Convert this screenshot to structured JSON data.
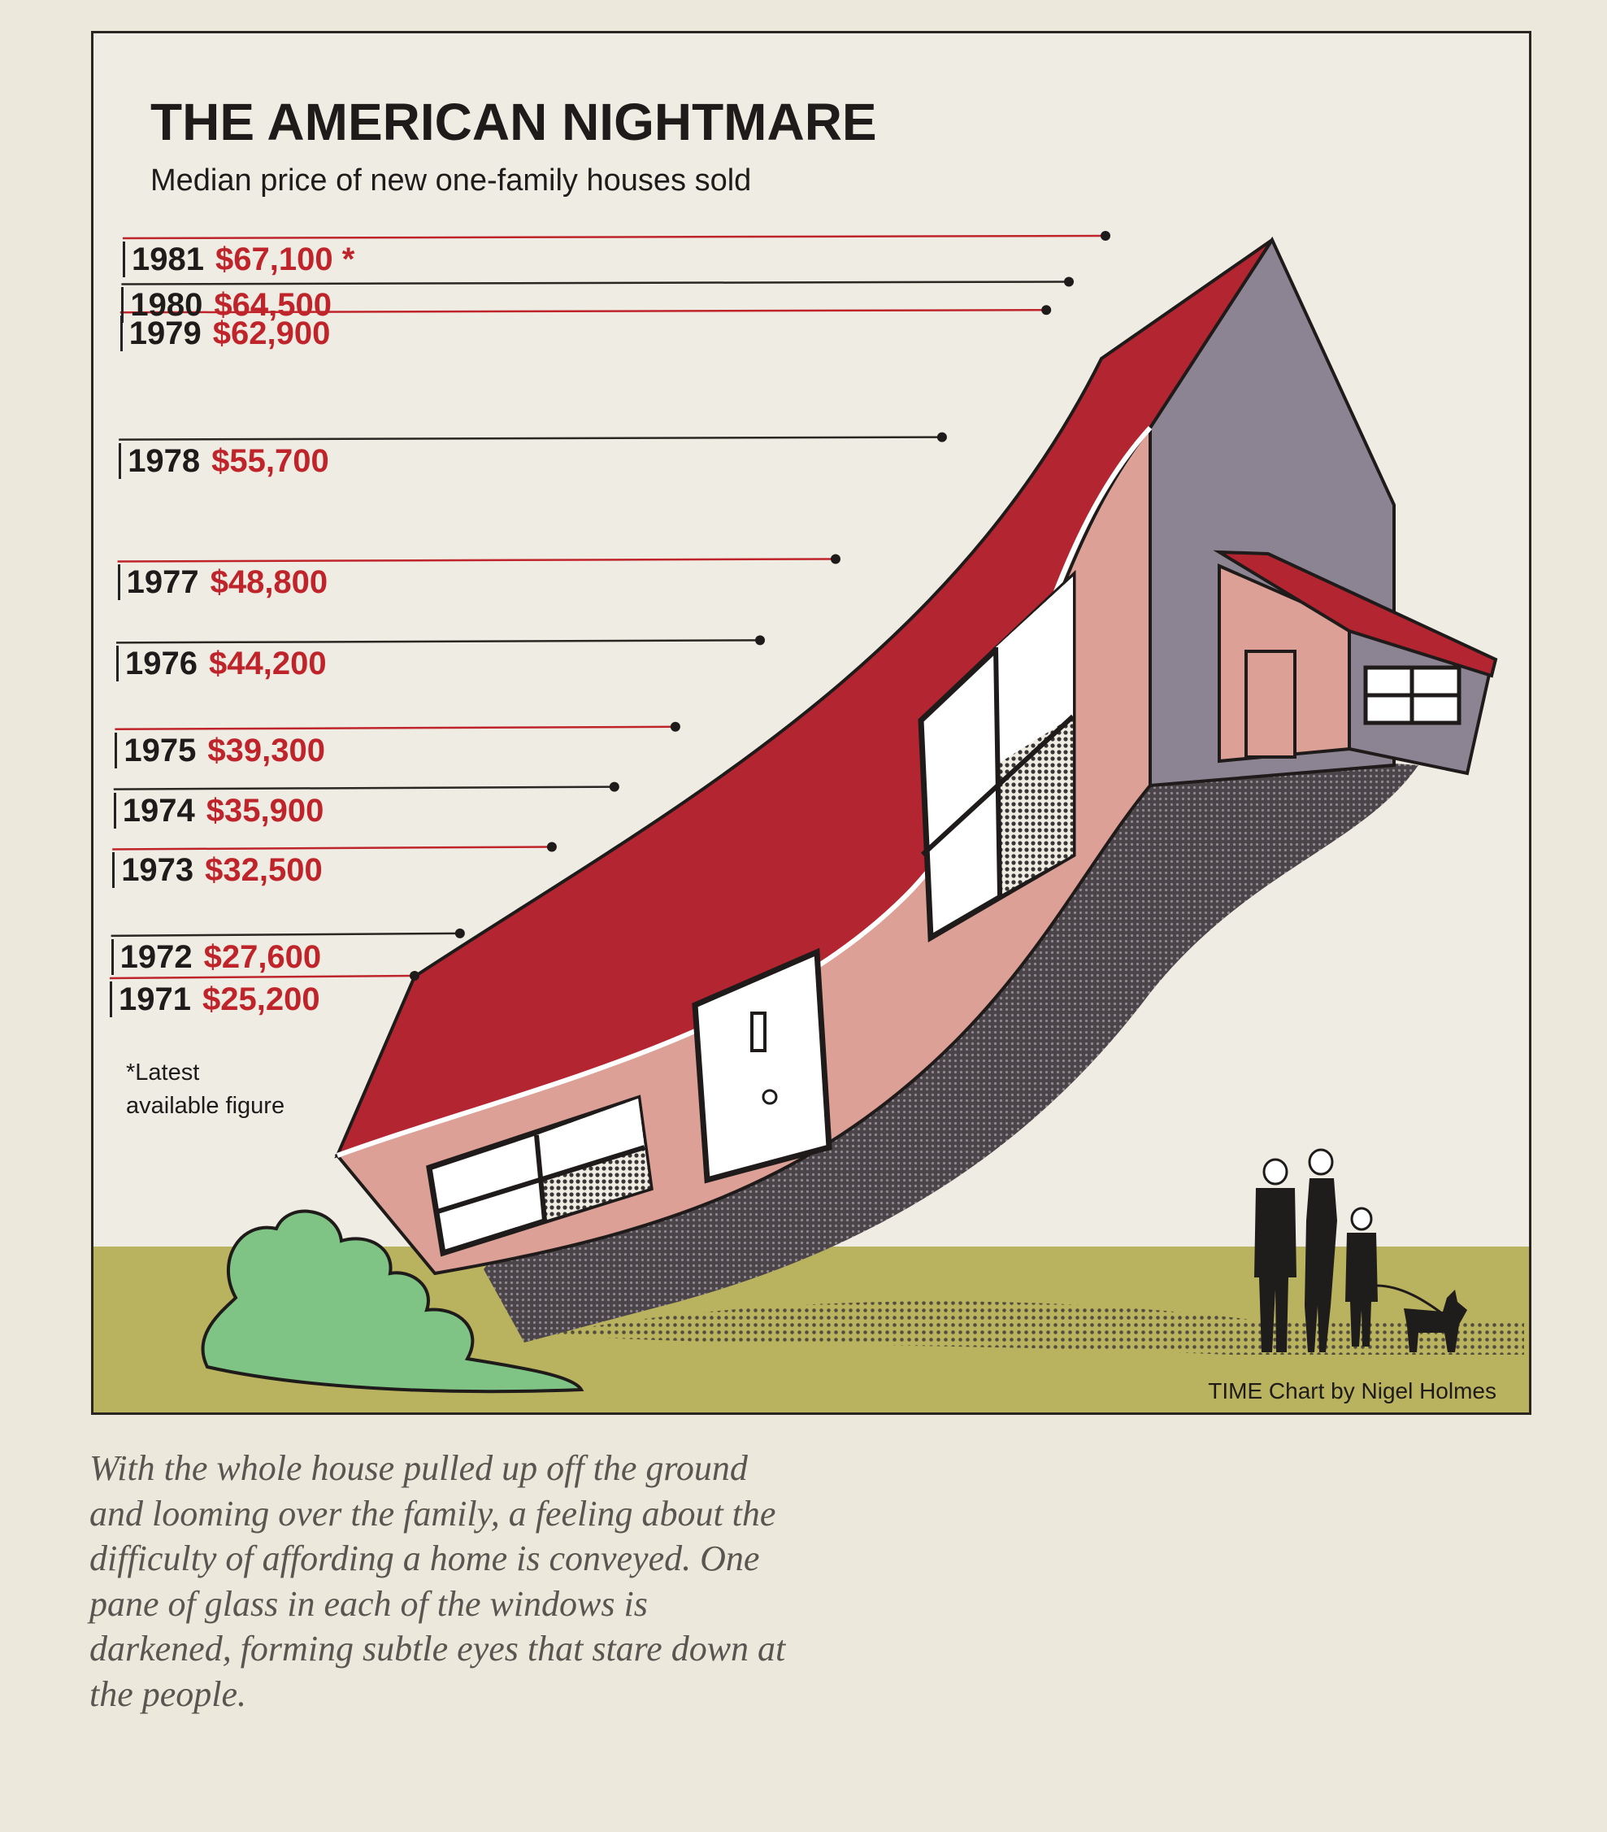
{
  "chart_data": {
    "type": "line",
    "title": "THE AMERICAN NIGHTMARE",
    "subtitle": "Median price of new one-family houses sold",
    "x": [
      "1971",
      "1972",
      "1973",
      "1974",
      "1975",
      "1976",
      "1977",
      "1978",
      "1979",
      "1980",
      "1981"
    ],
    "values": [
      25200,
      27600,
      32500,
      35900,
      39300,
      44200,
      48800,
      55700,
      62900,
      64500,
      67100
    ],
    "labels": [
      "$25,200",
      "$27,600",
      "$32,500",
      "$35,900",
      "$39,300",
      "$44,200",
      "$48,800",
      "$55,700",
      "$62,900",
      "$64,500",
      "$67,100"
    ],
    "ylim": [
      25200,
      67100
    ],
    "asterisk_mark": "*",
    "footnote": "*Latest available figure",
    "credit": "TIME Chart by Nigel Holmes",
    "grid": false
  },
  "caption": "With the whole house pulled up off the ground and looming over the family, a feeling about the difficulty of affording a home is conveyed. One pane of glass in each of the windows is darkened, forming subtle eyes that stare down at the people.",
  "colors": {
    "roof": "#b32530",
    "wall": "#dca096",
    "gable": "#8d8493",
    "ground": "#b9b25e",
    "bush": "#7fc485",
    "accent": "#c0242b"
  }
}
